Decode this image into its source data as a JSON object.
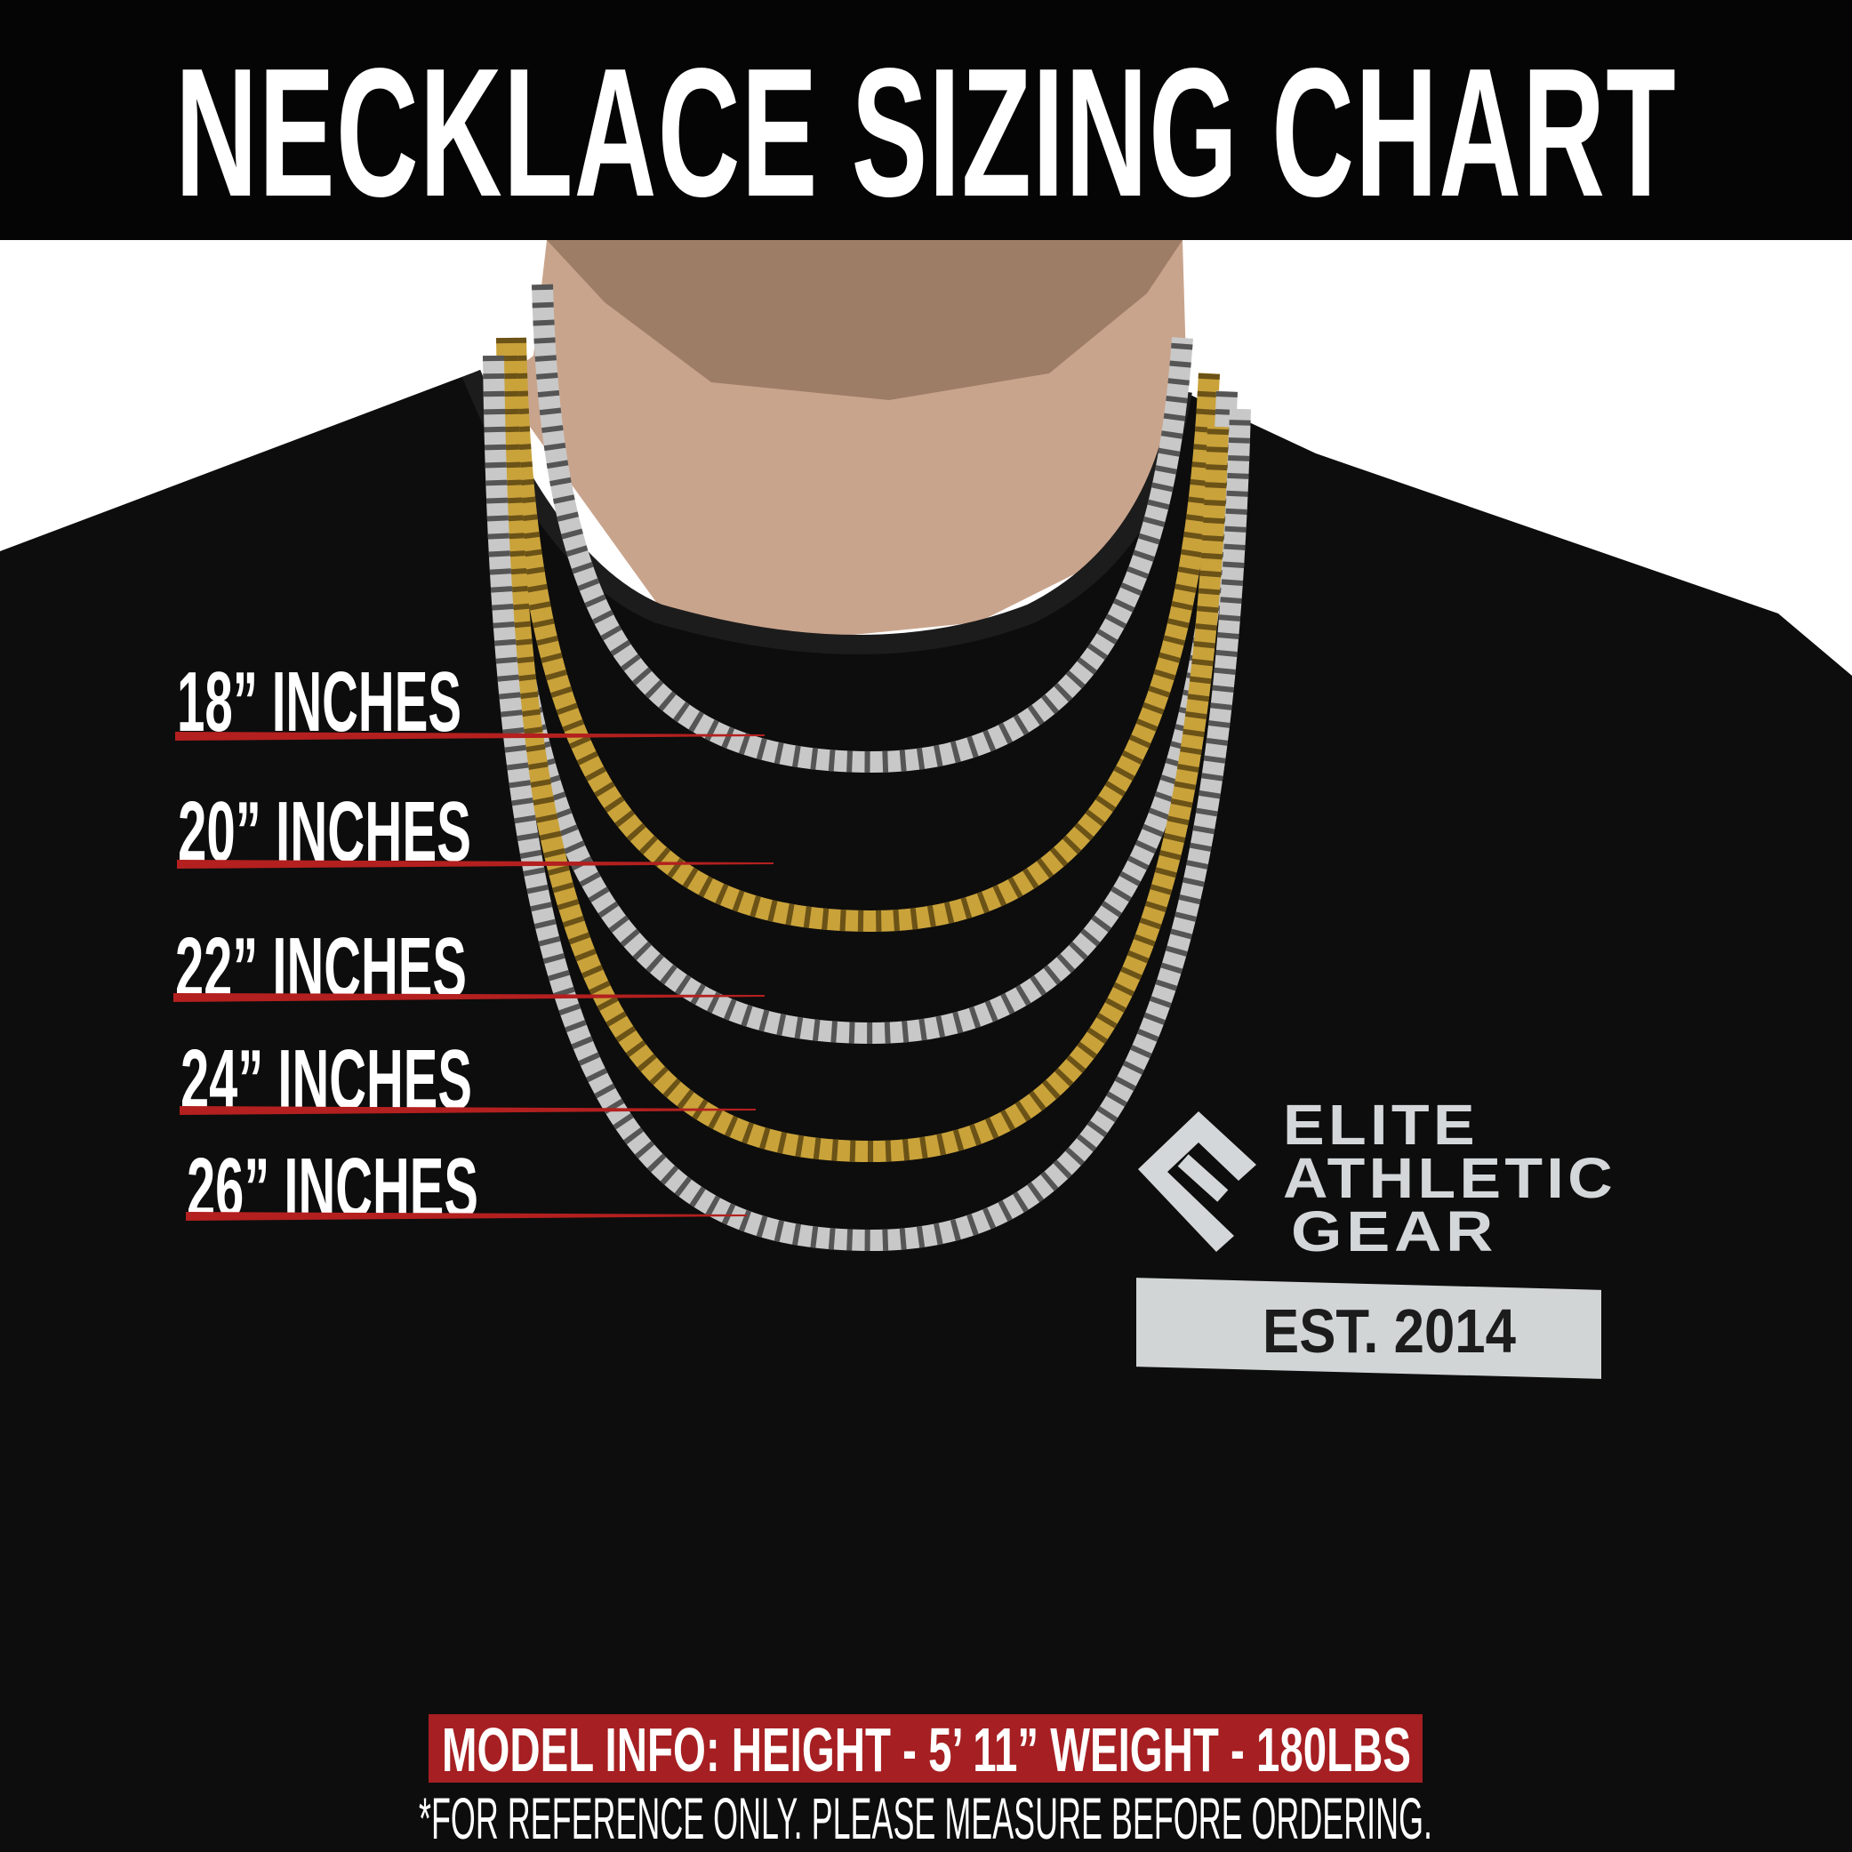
{
  "header": {
    "title": "NECKLACE SIZING CHART"
  },
  "sizes": [
    {
      "label": "18” INCHES",
      "chain": "silver"
    },
    {
      "label": "20” INCHES",
      "chain": "gold"
    },
    {
      "label": "22” INCHES",
      "chain": "silver"
    },
    {
      "label": "24” INCHES",
      "chain": "gold"
    },
    {
      "label": "26” INCHES",
      "chain": "silver"
    }
  ],
  "shirt_logo": {
    "line1": "ELITE",
    "line2": "ATHLETIC",
    "line3": "GEAR",
    "est": "EST. 2014"
  },
  "footer": {
    "model_info": "MODEL INFO: HEIGHT - 5’ 11”  WEIGHT - 180LBS",
    "note": "*FOR REFERENCE ONLY. PLEASE MEASURE BEFORE ORDERING."
  },
  "colors": {
    "header_bg": "#050505",
    "accent_red": "#a61f22",
    "shirt": "#0d0d0d",
    "skin": "#c9a48c",
    "gold": "#c9a23a",
    "silver": "#c8c8c8"
  }
}
